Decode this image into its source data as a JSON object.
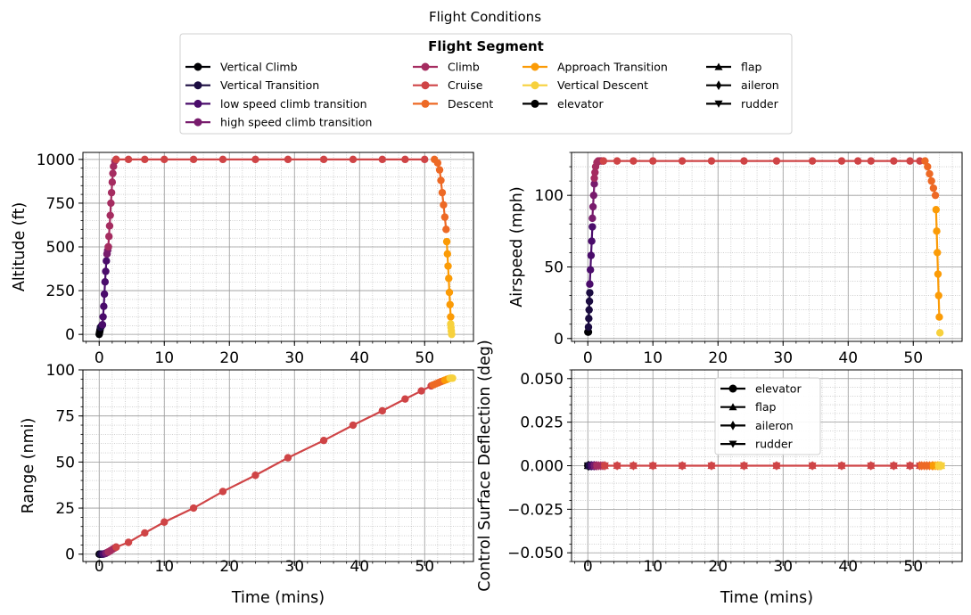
{
  "figure": {
    "title": "Flight Conditions"
  },
  "legend": {
    "title": "Flight Segment",
    "segments": [
      {
        "label": "Vertical Climb",
        "color": "#000004"
      },
      {
        "label": "Vertical Transition",
        "color": "#1b0c41"
      },
      {
        "label": "low speed climb transition",
        "color": "#4a0c6b"
      },
      {
        "label": "high speed climb transition",
        "color": "#781c6d"
      },
      {
        "label": "Climb",
        "color": "#a52c60"
      },
      {
        "label": "Cruise",
        "color": "#cf4446"
      },
      {
        "label": "Descent",
        "color": "#ed6925"
      },
      {
        "label": "Approach Transition",
        "color": "#fb9b06"
      },
      {
        "label": "Vertical Descent",
        "color": "#f7d13d"
      }
    ],
    "surfaces": [
      {
        "label": " elevator",
        "marker": "circle"
      },
      {
        "label": " flap",
        "marker": "triangle-up"
      },
      {
        "label": " aileron",
        "marker": "diamond"
      },
      {
        "label": " rudder",
        "marker": "triangle-down"
      }
    ]
  },
  "chart_data": [
    {
      "type": "line",
      "ylabel": "Altitude (ft)",
      "xlabel": "",
      "xlim": [
        -2.5,
        57.5
      ],
      "ylim": [
        -40,
        1040
      ],
      "xticks": [
        0,
        10,
        20,
        30,
        40,
        50
      ],
      "yticks": [
        0,
        250,
        500,
        750,
        1000
      ],
      "grid": true,
      "series": [
        {
          "name": "Vertical Climb",
          "x": [
            0,
            0.05,
            0.1,
            0.15,
            0.2
          ],
          "y": [
            0,
            10,
            20,
            30,
            40
          ]
        },
        {
          "name": "Vertical Transition",
          "x": [
            0.2,
            0.3,
            0.4,
            0.5
          ],
          "y": [
            40,
            45,
            50,
            55
          ]
        },
        {
          "name": "low speed climb transition",
          "x": [
            0.5,
            0.6,
            0.7,
            0.8,
            0.9,
            1.0,
            1.1,
            1.2
          ],
          "y": [
            55,
            100,
            160,
            230,
            300,
            360,
            420,
            460
          ]
        },
        {
          "name": "high speed climb transition",
          "x": [
            1.2,
            1.3,
            1.4
          ],
          "y": [
            460,
            480,
            500
          ]
        },
        {
          "name": "Climb",
          "x": [
            1.4,
            1.5,
            1.6,
            1.7,
            1.8,
            1.9,
            2.0,
            2.1,
            2.2,
            2.4,
            2.6
          ],
          "y": [
            500,
            560,
            620,
            680,
            750,
            810,
            870,
            920,
            960,
            990,
            1000
          ]
        },
        {
          "name": "Cruise",
          "x": [
            2.6,
            4.5,
            7,
            10,
            14.5,
            19,
            24,
            29,
            34.5,
            39,
            43.5,
            47,
            50
          ],
          "y": [
            1000,
            1000,
            1000,
            1000,
            1000,
            1000,
            1000,
            1000,
            1000,
            1000,
            1000,
            1000,
            1000
          ]
        },
        {
          "name": "Descent",
          "x": [
            51.5,
            52,
            52.3,
            52.5,
            52.7,
            52.9,
            53.1,
            53.3
          ],
          "y": [
            1000,
            980,
            940,
            880,
            810,
            740,
            670,
            600
          ]
        },
        {
          "name": "Approach Transition",
          "x": [
            53.4,
            53.5,
            53.6,
            53.7,
            53.8,
            53.9,
            54.0
          ],
          "y": [
            530,
            460,
            390,
            320,
            240,
            170,
            100
          ]
        },
        {
          "name": "Vertical Descent",
          "x": [
            54.0,
            54.05,
            54.1,
            54.15
          ],
          "y": [
            60,
            40,
            20,
            0
          ]
        }
      ]
    },
    {
      "type": "line",
      "ylabel": "Airspeed (mph)",
      "xlabel": "",
      "xlim": [
        -2.5,
        57.5
      ],
      "ylim": [
        -2,
        130
      ],
      "xticks": [
        0,
        10,
        20,
        30,
        40,
        50
      ],
      "yticks": [
        0,
        50,
        100
      ],
      "grid": true,
      "series": [
        {
          "name": "Vertical Climb",
          "x": [
            0,
            0.05,
            0.1
          ],
          "y": [
            4.5,
            4.5,
            4.5
          ]
        },
        {
          "name": "Vertical Transition",
          "x": [
            0.1,
            0.15,
            0.2,
            0.25,
            0.3
          ],
          "y": [
            8,
            14,
            20,
            26,
            32
          ]
        },
        {
          "name": "low speed climb transition",
          "x": [
            0.3,
            0.4,
            0.5,
            0.6,
            0.7
          ],
          "y": [
            38,
            48,
            58,
            68,
            78
          ]
        },
        {
          "name": "high speed climb transition",
          "x": [
            0.7,
            0.8,
            0.9,
            1.0
          ],
          "y": [
            84,
            92,
            100,
            108
          ]
        },
        {
          "name": "Climb",
          "x": [
            1.0,
            1.1,
            1.2,
            1.4,
            1.6,
            1.8,
            2.1,
            2.4
          ],
          "y": [
            112,
            116,
            120,
            123,
            124,
            124,
            124,
            124
          ]
        },
        {
          "name": "Cruise",
          "x": [
            2.4,
            4.5,
            7,
            10,
            14.5,
            19,
            24,
            29,
            34.5,
            39,
            41.5,
            43.5,
            47,
            49.5,
            51
          ],
          "y": [
            124,
            124,
            124,
            124,
            124,
            124,
            124,
            124,
            124,
            124,
            124,
            124,
            124,
            124,
            124
          ]
        },
        {
          "name": "Descent",
          "x": [
            51.8,
            52.2,
            52.5,
            52.8,
            53.1,
            53.4
          ],
          "y": [
            124,
            120,
            115,
            110,
            105,
            100
          ]
        },
        {
          "name": "Approach Transition",
          "x": [
            53.5,
            53.6,
            53.7,
            53.8,
            53.9,
            54.0
          ],
          "y": [
            90,
            75,
            60,
            45,
            30,
            15
          ]
        },
        {
          "name": "Vertical Descent",
          "x": [
            54.1
          ],
          "y": [
            4
          ]
        }
      ]
    },
    {
      "type": "line",
      "ylabel": "Range (nmi)",
      "xlabel": "Time (mins)",
      "xlim": [
        -2.5,
        57.5
      ],
      "ylim": [
        -4,
        100
      ],
      "xticks": [
        0,
        10,
        20,
        30,
        40,
        50
      ],
      "yticks": [
        0,
        25,
        50,
        75,
        100
      ],
      "grid": true,
      "series": [
        {
          "name": "Vertical Climb",
          "x": [
            0,
            0.1,
            0.2
          ],
          "y": [
            0,
            0,
            0
          ]
        },
        {
          "name": "Vertical Transition",
          "x": [
            0.2,
            0.4,
            0.6
          ],
          "y": [
            0,
            0,
            0
          ]
        },
        {
          "name": "low speed climb transition",
          "x": [
            0.6,
            0.8,
            1.0
          ],
          "y": [
            0.1,
            0.2,
            0.4
          ]
        },
        {
          "name": "high speed climb transition",
          "x": [
            1.0,
            1.2,
            1.4
          ],
          "y": [
            0.5,
            0.8,
            1.1
          ]
        },
        {
          "name": "Climb",
          "x": [
            1.4,
            1.7,
            2.0,
            2.3,
            2.6
          ],
          "y": [
            1.2,
            1.8,
            2.5,
            3.2,
            3.8
          ]
        },
        {
          "name": "Cruise",
          "x": [
            2.6,
            4.5,
            7,
            10,
            14.5,
            19,
            24,
            29,
            34.5,
            39,
            43.5,
            47,
            49.5,
            51
          ],
          "y": [
            3.8,
            6.4,
            11.5,
            17.4,
            25,
            34,
            42.8,
            52.3,
            61.7,
            70,
            77.8,
            84.2,
            88.6,
            91.3
          ]
        },
        {
          "name": "Descent",
          "x": [
            51.3,
            51.7,
            52.1,
            52.5,
            52.9
          ],
          "y": [
            91.8,
            92.4,
            93,
            93.6,
            94.1
          ]
        },
        {
          "name": "Approach Transition",
          "x": [
            53.1,
            53.4,
            53.7
          ],
          "y": [
            94.4,
            94.8,
            95.2
          ]
        },
        {
          "name": "Vertical Descent",
          "x": [
            53.9,
            54.1,
            54.3
          ],
          "y": [
            95.4,
            95.5,
            95.5
          ]
        }
      ]
    },
    {
      "type": "line",
      "ylabel": "Control Surface Deflection (deg)",
      "xlabel": "Time (mins)",
      "xlim": [
        -2.5,
        57.5
      ],
      "ylim": [
        -0.055,
        0.055
      ],
      "xticks": [
        0,
        10,
        20,
        30,
        40,
        50
      ],
      "yticks": [
        -0.05,
        -0.025,
        0,
        0.025,
        0.05
      ],
      "ytick_labels": [
        "−0.050",
        "−0.025",
        "0.000",
        "0.025",
        "0.050"
      ],
      "grid": true,
      "legend": {
        "location": "upper-center",
        "entries": [
          " elevator",
          " flap",
          " aileron",
          " rudder"
        ]
      },
      "series": [
        {
          "name": "Vertical Climb",
          "x": [
            0,
            0.1,
            0.2
          ],
          "y": [
            0,
            0,
            0
          ]
        },
        {
          "name": "Vertical Transition",
          "x": [
            0.2,
            0.4,
            0.6
          ],
          "y": [
            0,
            0,
            0
          ]
        },
        {
          "name": "low speed climb transition",
          "x": [
            0.6,
            0.8,
            1.0
          ],
          "y": [
            0,
            0,
            0
          ]
        },
        {
          "name": "high speed climb transition",
          "x": [
            1.0,
            1.2,
            1.4
          ],
          "y": [
            0,
            0,
            0
          ]
        },
        {
          "name": "Climb",
          "x": [
            1.4,
            1.7,
            2.0,
            2.3,
            2.6
          ],
          "y": [
            0,
            0,
            0,
            0,
            0
          ]
        },
        {
          "name": "Cruise",
          "x": [
            2.6,
            4.5,
            7,
            10,
            14.5,
            19,
            24,
            29,
            34.5,
            39,
            43.5,
            47,
            49.5,
            51
          ],
          "y": [
            0,
            0,
            0,
            0,
            0,
            0,
            0,
            0,
            0,
            0,
            0,
            0,
            0,
            0
          ]
        },
        {
          "name": "Descent",
          "x": [
            51.3,
            51.7,
            52.1,
            52.5,
            52.9
          ],
          "y": [
            0,
            0,
            0,
            0,
            0
          ]
        },
        {
          "name": "Approach Transition",
          "x": [
            53.1,
            53.4,
            53.7
          ],
          "y": [
            0,
            0,
            0
          ]
        },
        {
          "name": "Vertical Descent",
          "x": [
            53.9,
            54.1,
            54.3
          ],
          "y": [
            0,
            0,
            0
          ]
        }
      ]
    }
  ]
}
